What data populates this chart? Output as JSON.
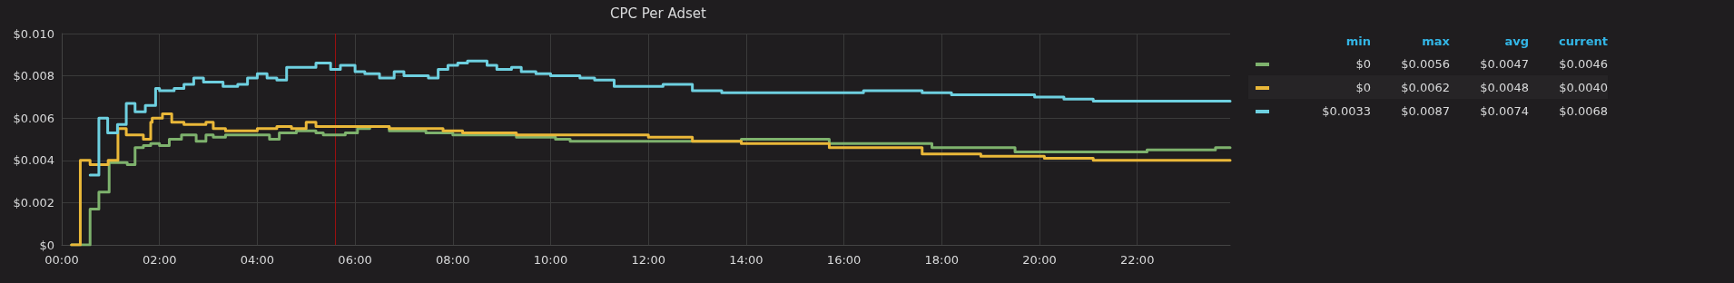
{
  "chart_data": {
    "type": "step",
    "title": "CPC Per Adset",
    "xlim": [
      0,
      23.9
    ],
    "xticks": [
      {
        "value": 0,
        "label": "00:00"
      },
      {
        "value": 2,
        "label": "02:00"
      },
      {
        "value": 4,
        "label": "04:00"
      },
      {
        "value": 6,
        "label": "06:00"
      },
      {
        "value": 8,
        "label": "08:00"
      },
      {
        "value": 10,
        "label": "10:00"
      },
      {
        "value": 12,
        "label": "12:00"
      },
      {
        "value": 14,
        "label": "14:00"
      },
      {
        "value": 16,
        "label": "16:00"
      },
      {
        "value": 18,
        "label": "18:00"
      },
      {
        "value": 20,
        "label": "20:00"
      },
      {
        "value": 22,
        "label": "22:00"
      }
    ],
    "ylim": [
      0,
      0.01
    ],
    "yticks": [
      {
        "value": 0,
        "label": "$0"
      },
      {
        "value": 0.002,
        "label": "$0.002"
      },
      {
        "value": 0.004,
        "label": "$0.004"
      },
      {
        "value": 0.006,
        "label": "$0.006"
      },
      {
        "value": 0.008,
        "label": "$0.008"
      },
      {
        "value": 0.01,
        "label": "$0.010"
      }
    ],
    "grid": true,
    "marker": "none",
    "line_style": "solid",
    "ref_lines": [
      {
        "axis": "x",
        "value": 5.6,
        "color": "#a01010"
      }
    ],
    "annotations": [
      "min",
      "max",
      "avg",
      "current",
      "$0",
      "$0.0056",
      "$0.0047",
      "$0.0046",
      "$0",
      "$0.0062",
      "$0.0048",
      "$0.0040",
      "$0.0033",
      "$0.0087",
      "$0.0074",
      "$0.0068"
    ],
    "series": [
      {
        "color": "#7eb26d",
        "x": [
          0.2,
          0.58,
          0.76,
          0.97,
          1.34,
          1.5,
          1.67,
          1.82,
          2.0,
          2.2,
          2.45,
          2.75,
          2.95,
          3.1,
          3.35,
          3.7,
          4.25,
          4.45,
          4.8,
          5.2,
          5.35,
          5.8,
          6.05,
          6.3,
          6.7,
          7.45,
          8.0,
          9.3,
          10.1,
          10.4,
          12.0,
          13.9,
          15.7,
          17.8,
          19.5,
          20.5,
          22.2,
          23.6,
          23.9
        ],
        "values": [
          0,
          0.0017,
          0.0025,
          0.0039,
          0.0038,
          0.0046,
          0.0047,
          0.0048,
          0.0047,
          0.005,
          0.0052,
          0.0049,
          0.0052,
          0.0051,
          0.0052,
          0.0052,
          0.005,
          0.0053,
          0.0054,
          0.0053,
          0.0052,
          0.0053,
          0.0055,
          0.0056,
          0.0054,
          0.0053,
          0.0052,
          0.0051,
          0.005,
          0.0049,
          0.0049,
          0.005,
          0.0048,
          0.0046,
          0.0044,
          0.0044,
          0.0045,
          0.0046,
          0.0046
        ]
      },
      {
        "color": "#eab839",
        "x": [
          0.2,
          0.38,
          0.58,
          0.95,
          1.15,
          1.32,
          1.67,
          1.82,
          1.85,
          2.06,
          2.25,
          2.5,
          2.95,
          3.1,
          3.35,
          4.0,
          4.4,
          4.7,
          5.0,
          5.2,
          5.9,
          6.7,
          7.8,
          8.2,
          9.3,
          10.5,
          12.0,
          12.9,
          13.9,
          15.7,
          17.6,
          18.8,
          20.1,
          21.1,
          23.6,
          23.9
        ],
        "values": [
          0,
          0.004,
          0.0038,
          0.004,
          0.0055,
          0.0052,
          0.005,
          0.0058,
          0.006,
          0.0062,
          0.0058,
          0.0057,
          0.0058,
          0.0055,
          0.0054,
          0.0055,
          0.0056,
          0.0055,
          0.0058,
          0.0056,
          0.0056,
          0.0055,
          0.0054,
          0.0053,
          0.0052,
          0.0052,
          0.0051,
          0.0049,
          0.0048,
          0.0046,
          0.0043,
          0.0042,
          0.0041,
          0.004,
          0.004,
          0.004
        ]
      },
      {
        "color": "#6ed0e0",
        "x": [
          0.58,
          0.76,
          0.94,
          1.14,
          1.32,
          1.5,
          1.71,
          1.92,
          2.0,
          2.3,
          2.5,
          2.7,
          2.9,
          3.3,
          3.6,
          3.8,
          4.0,
          4.2,
          4.4,
          4.6,
          4.9,
          5.2,
          5.5,
          5.7,
          6.0,
          6.2,
          6.5,
          6.8,
          7.0,
          7.5,
          7.7,
          7.9,
          8.1,
          8.3,
          8.7,
          8.9,
          9.2,
          9.4,
          9.7,
          10.0,
          10.6,
          10.9,
          11.3,
          12.3,
          12.9,
          13.5,
          16.4,
          17.6,
          18.2,
          19.2,
          19.9,
          20.5,
          21.1,
          23.6,
          23.9
        ],
        "values": [
          0.0033,
          0.006,
          0.0053,
          0.0057,
          0.0067,
          0.0063,
          0.0066,
          0.0074,
          0.0073,
          0.0074,
          0.0076,
          0.0079,
          0.0077,
          0.0075,
          0.0076,
          0.0079,
          0.0081,
          0.0079,
          0.0078,
          0.0084,
          0.0084,
          0.0086,
          0.0083,
          0.0085,
          0.0082,
          0.0081,
          0.0079,
          0.0082,
          0.008,
          0.0079,
          0.0083,
          0.0085,
          0.0086,
          0.0087,
          0.0085,
          0.0083,
          0.0084,
          0.0082,
          0.0081,
          0.008,
          0.0079,
          0.0078,
          0.0075,
          0.0076,
          0.0073,
          0.0072,
          0.0073,
          0.0072,
          0.0071,
          0.0071,
          0.007,
          0.0069,
          0.0068,
          0.0068,
          0.0068
        ]
      }
    ]
  }
}
